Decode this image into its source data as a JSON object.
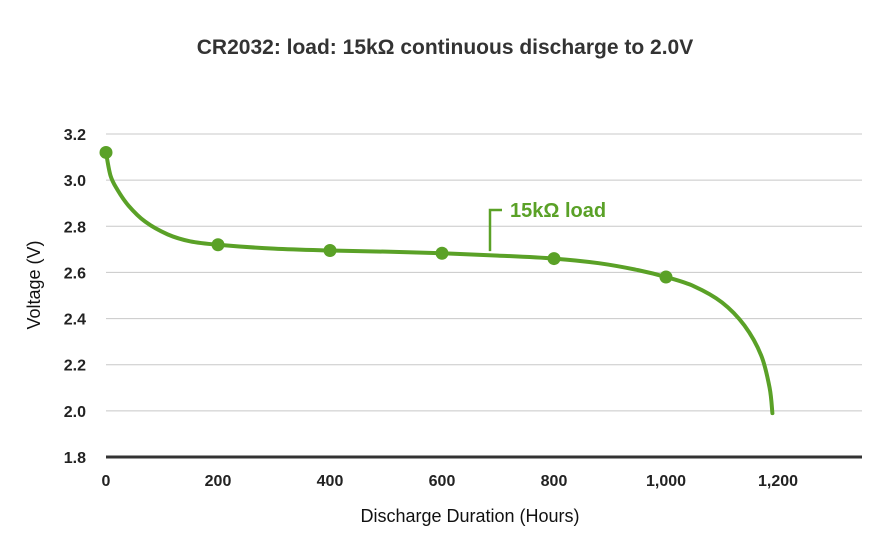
{
  "chart_data": {
    "type": "line",
    "title": "CR2032: load: 15kΩ continuous discharge to 2.0V",
    "xlabel": "Discharge Duration (Hours)",
    "ylabel": "Voltage (V)",
    "xlim": [
      0,
      1350
    ],
    "ylim": [
      1.8,
      3.2
    ],
    "x_ticks": [
      0,
      200,
      400,
      600,
      800,
      1000,
      1200
    ],
    "x_tick_labels": [
      "0",
      "200",
      "400",
      "600",
      "800",
      "1,000",
      "1,200"
    ],
    "y_ticks": [
      1.8,
      2.0,
      2.2,
      2.4,
      2.6,
      2.8,
      3.0,
      3.2
    ],
    "y_tick_labels": [
      "1.8",
      "2.0",
      "2.2",
      "2.4",
      "2.6",
      "2.8",
      "3.0",
      "3.2"
    ],
    "grid": true,
    "series": [
      {
        "name": "15kΩ load",
        "color": "#5aa127",
        "curve": [
          [
            0,
            3.12
          ],
          [
            8,
            3.02
          ],
          [
            20,
            2.96
          ],
          [
            40,
            2.89
          ],
          [
            70,
            2.82
          ],
          [
            110,
            2.765
          ],
          [
            150,
            2.735
          ],
          [
            200,
            2.72
          ],
          [
            300,
            2.703
          ],
          [
            400,
            2.695
          ],
          [
            500,
            2.69
          ],
          [
            600,
            2.683
          ],
          [
            700,
            2.673
          ],
          [
            800,
            2.66
          ],
          [
            880,
            2.64
          ],
          [
            950,
            2.61
          ],
          [
            1000,
            2.58
          ],
          [
            1050,
            2.54
          ],
          [
            1100,
            2.47
          ],
          [
            1140,
            2.37
          ],
          [
            1170,
            2.24
          ],
          [
            1185,
            2.1
          ],
          [
            1190,
            1.99
          ]
        ],
        "points": [
          [
            0,
            3.12
          ],
          [
            200,
            2.72
          ],
          [
            400,
            2.695
          ],
          [
            600,
            2.683
          ],
          [
            800,
            2.66
          ],
          [
            1000,
            2.58
          ]
        ]
      }
    ],
    "annotations": [
      {
        "text": "15kΩ load",
        "series": 0,
        "x": 700,
        "y": 2.675
      }
    ]
  }
}
